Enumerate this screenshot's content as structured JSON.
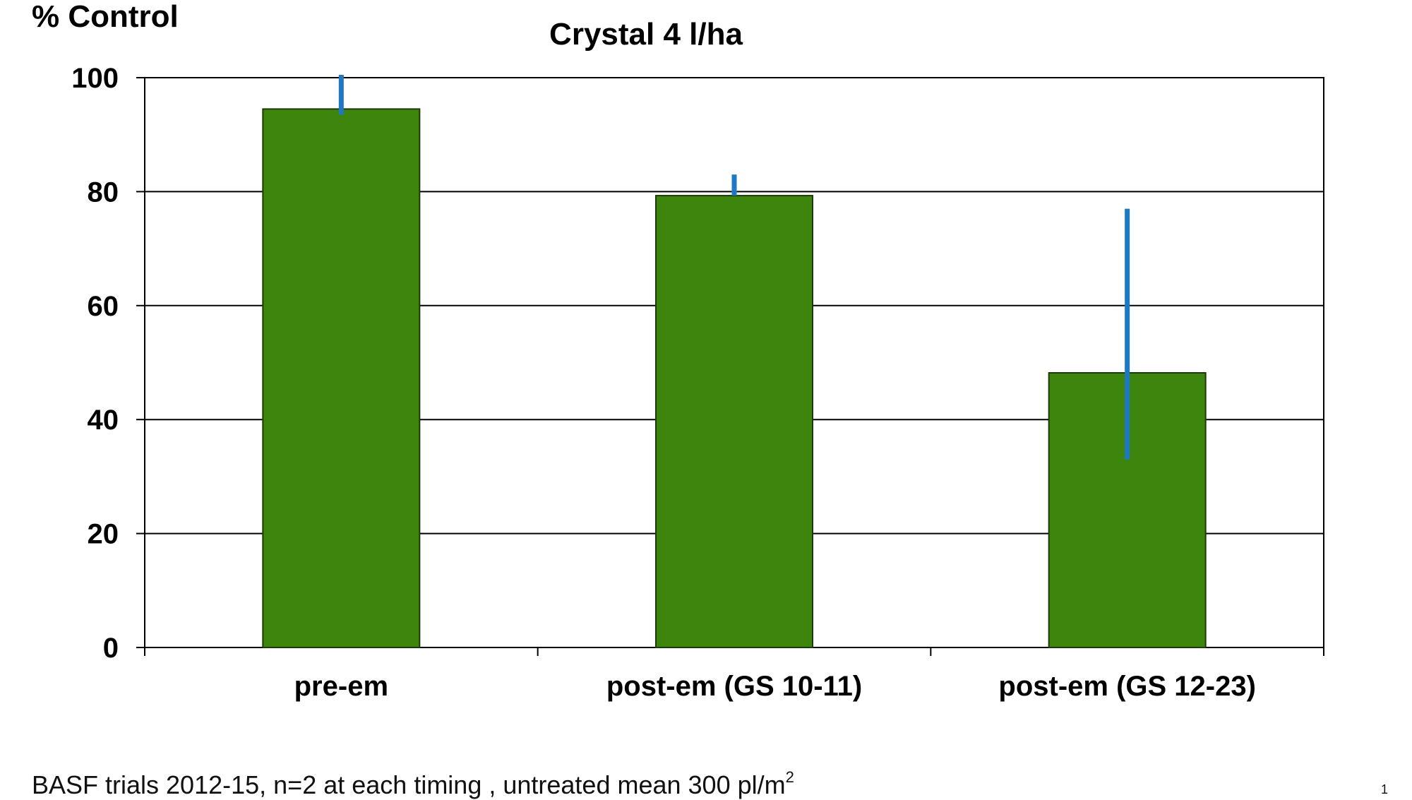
{
  "chart_data": {
    "type": "bar",
    "title": "Crystal 4 l/ha",
    "ylabel": "% Control",
    "xlabel": "",
    "categories": [
      "pre-em",
      "post-em (GS 10-11)",
      "post-em (GS 12-23)"
    ],
    "values": [
      94.5,
      79.3,
      48.2
    ],
    "error_bars": [
      {
        "low": 93.5,
        "high": 100.5
      },
      {
        "low": 79.3,
        "high": 83
      },
      {
        "low": 33,
        "high": 77
      }
    ],
    "ylim": [
      0,
      100
    ],
    "yticks": [
      "0",
      "20",
      "40",
      "60",
      "80",
      "100"
    ],
    "grid": true,
    "legend": "none",
    "colors": {
      "bar_fill": "#3d850c",
      "bar_stroke": "#1d3a08",
      "error_bar": "#1f78c4",
      "grid": "#000000"
    }
  },
  "footnote": {
    "text": "BASF trials 2012-15, n=2 at each timing , untreated mean 300 pl/m",
    "superscript": "2"
  },
  "slide_number": "1"
}
